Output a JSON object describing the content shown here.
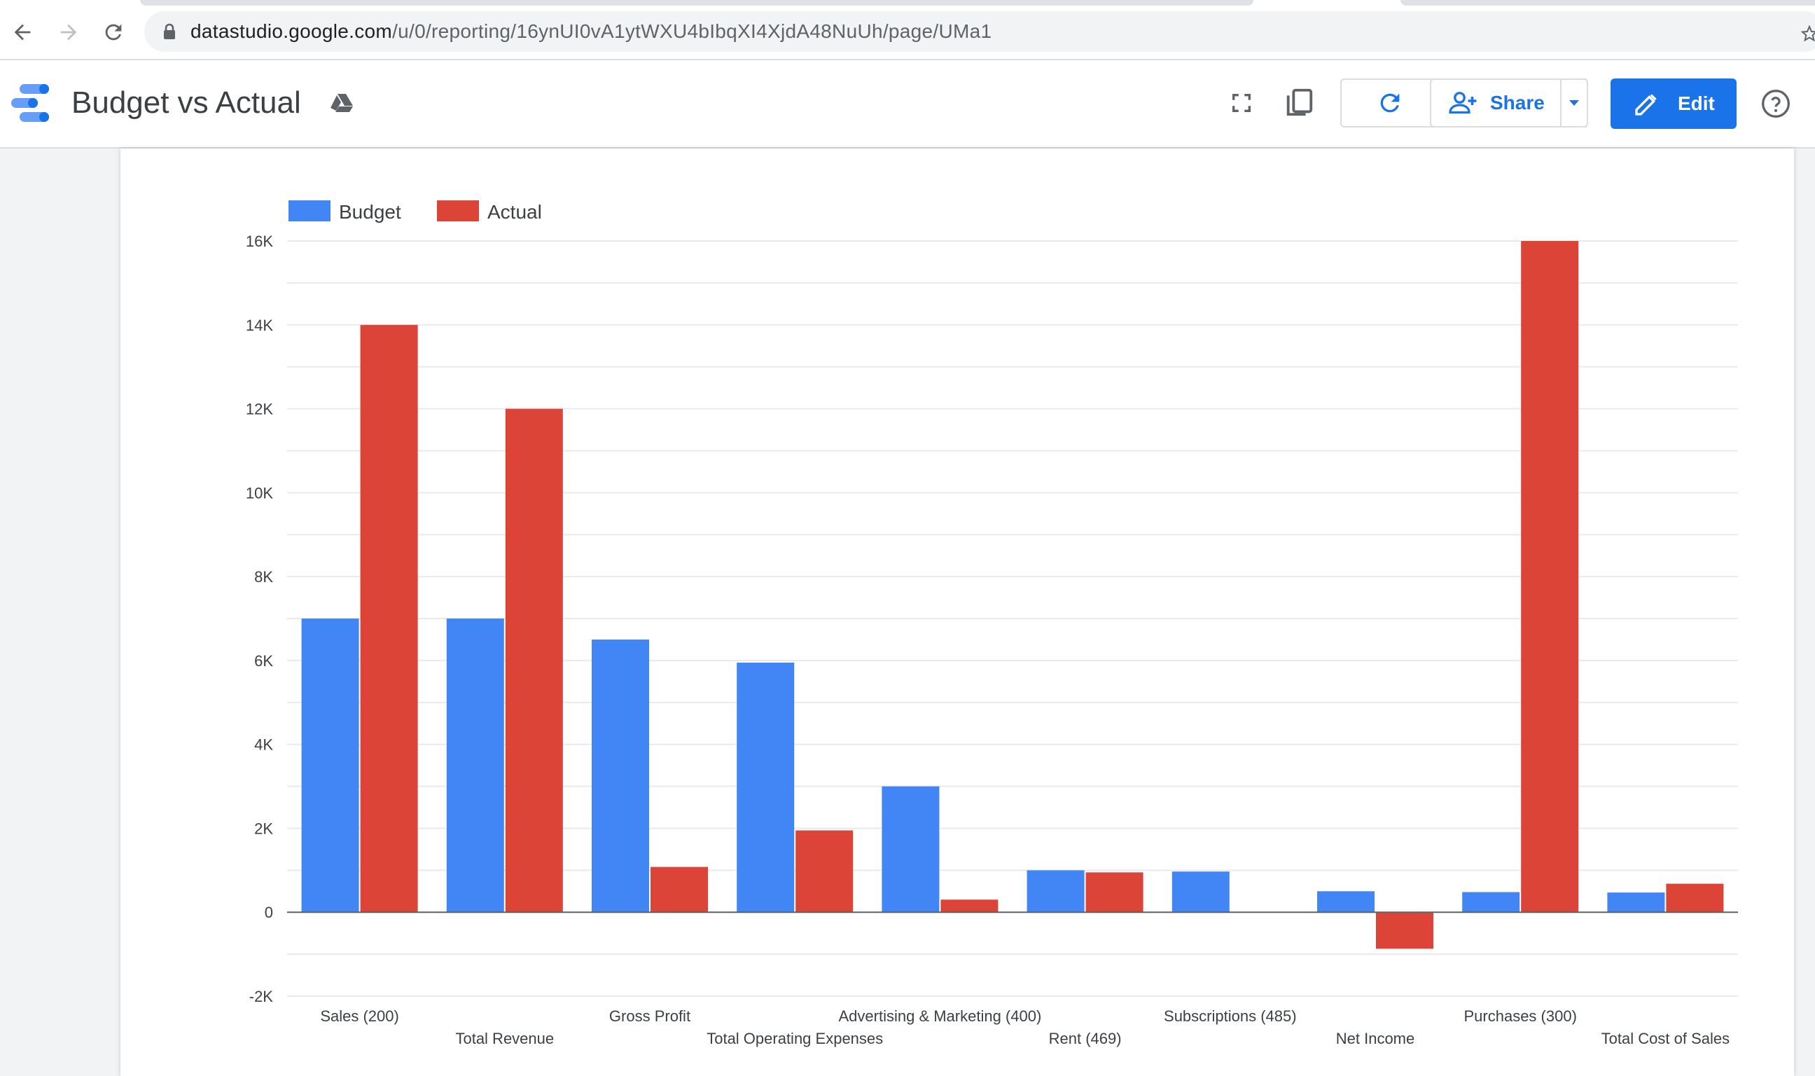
{
  "browser": {
    "url_domain": "datastudio.google.com",
    "url_path": "/u/0/reporting/16ynUI0vA1ytWXU4bIbqXI4XjdA48NuUh/page/UMa1"
  },
  "header": {
    "title": "Budget vs Actual",
    "share_label": "Share",
    "edit_label": "Edit"
  },
  "colors": {
    "budget": "#4285f4",
    "actual": "#db4437",
    "accent": "#1a73e8"
  },
  "icons": [
    "back-arrow-icon",
    "forward-arrow-icon",
    "reload-icon",
    "lock-icon",
    "star-icon",
    "data-studio-logo-icon",
    "drive-icon",
    "fullscreen-icon",
    "copy-icon",
    "refresh-icon",
    "add-person-icon",
    "dropdown-arrow-icon",
    "pencil-icon",
    "help-icon"
  ],
  "chart_data": {
    "type": "bar",
    "categories": [
      "Sales (200)",
      "Total Revenue",
      "Gross Profit",
      "Total Operating Expenses",
      "Advertising & Marketing (400)",
      "Rent (469)",
      "Subscriptions (485)",
      "Net Income",
      "Purchases (300)",
      "Total Cost of Sales"
    ],
    "series": [
      {
        "name": "Budget",
        "values": [
          7000,
          7000,
          6500,
          5950,
          3000,
          1000,
          970,
          500,
          480,
          470
        ]
      },
      {
        "name": "Actual",
        "values": [
          14000,
          12000,
          1080,
          1950,
          300,
          950,
          null,
          -870,
          16000,
          680
        ]
      }
    ],
    "yticks": [
      "16K",
      "14K",
      "12K",
      "10K",
      "8K",
      "6K",
      "4K",
      "2K",
      "0",
      "-2K"
    ],
    "ylim": [
      -2000,
      16000
    ],
    "grid": true,
    "legend_position": "top-left"
  }
}
